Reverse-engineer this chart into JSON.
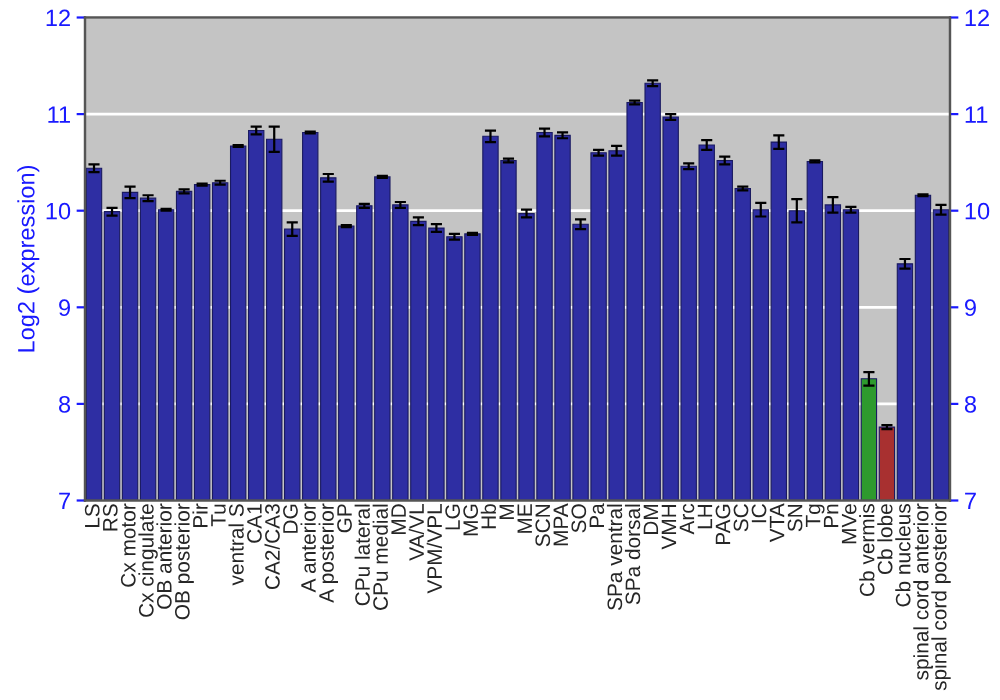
{
  "chart_data": {
    "type": "bar",
    "ylabel": "Log2 (expression)",
    "categories": [
      "LS",
      "RS",
      "Cx motor",
      "Cx cingulate",
      "OB anterior",
      "OB posterior",
      "Pir",
      "Tu",
      "ventral S",
      "CA1",
      "CA2/CA3",
      "DG",
      "A anterior",
      "A posterior",
      "GP",
      "CPu lateral",
      "CPu medial",
      "MD",
      "VA/VL",
      "VPM/VPL",
      "LG",
      "MG",
      "Hb",
      "M",
      "ME",
      "SCN",
      "MPA",
      "SO",
      "Pa",
      "SPa ventral",
      "SPa dorsal",
      "DM",
      "VMH",
      "Arc",
      "LH",
      "PAG",
      "SC",
      "IC",
      "VTA",
      "SN",
      "Tg",
      "Pn",
      "MVe",
      "Cb vermis",
      "Cb lobe",
      "Cb nucleus",
      "spinal cord anterior",
      "spinal cord posterior"
    ],
    "values": [
      10.44,
      9.99,
      10.19,
      10.13,
      10.01,
      10.2,
      10.27,
      10.29,
      10.67,
      10.83,
      10.74,
      9.81,
      10.81,
      10.34,
      9.84,
      10.05,
      10.35,
      10.06,
      9.89,
      9.82,
      9.73,
      9.76,
      10.77,
      10.52,
      9.97,
      10.81,
      10.78,
      9.86,
      10.6,
      10.62,
      11.12,
      11.32,
      10.97,
      10.46,
      10.68,
      10.52,
      10.23,
      10.01,
      10.71,
      10.0,
      10.51,
      10.06,
      10.01,
      8.26,
      7.76,
      9.45,
      10.16,
      10.01
    ],
    "errors": [
      0.04,
      0.04,
      0.06,
      0.03,
      0.01,
      0.02,
      0.01,
      0.02,
      0.01,
      0.04,
      0.13,
      0.07,
      0.01,
      0.04,
      0.01,
      0.02,
      0.01,
      0.03,
      0.04,
      0.04,
      0.03,
      0.01,
      0.06,
      0.02,
      0.04,
      0.04,
      0.03,
      0.05,
      0.03,
      0.05,
      0.02,
      0.03,
      0.03,
      0.03,
      0.05,
      0.04,
      0.02,
      0.07,
      0.07,
      0.12,
      0.01,
      0.08,
      0.03,
      0.07,
      0.02,
      0.05,
      0.01,
      0.05
    ],
    "colors": [
      "#2e2ea3",
      "#2e2ea3",
      "#2e2ea3",
      "#2e2ea3",
      "#2e2ea3",
      "#2e2ea3",
      "#2e2ea3",
      "#2e2ea3",
      "#2e2ea3",
      "#2e2ea3",
      "#2e2ea3",
      "#2e2ea3",
      "#2e2ea3",
      "#2e2ea3",
      "#2e2ea3",
      "#2e2ea3",
      "#2e2ea3",
      "#2e2ea3",
      "#2e2ea3",
      "#2e2ea3",
      "#2e2ea3",
      "#2e2ea3",
      "#2e2ea3",
      "#2e2ea3",
      "#2e2ea3",
      "#2e2ea3",
      "#2e2ea3",
      "#2e2ea3",
      "#2e2ea3",
      "#2e2ea3",
      "#2e2ea3",
      "#2e2ea3",
      "#2e2ea3",
      "#2e2ea3",
      "#2e2ea3",
      "#2e2ea3",
      "#2e2ea3",
      "#2e2ea3",
      "#2e2ea3",
      "#2e2ea3",
      "#2e2ea3",
      "#2e2ea3",
      "#2e2ea3",
      "#2e9a2e",
      "#a83030",
      "#2e2ea3",
      "#2e2ea3",
      "#2e2ea3"
    ],
    "ylim": [
      7,
      12
    ],
    "yticks": [
      7,
      8,
      9,
      10,
      11,
      12
    ],
    "y2lim": [
      7,
      12
    ],
    "y2ticks": [
      7,
      8,
      9,
      10,
      11,
      12
    ],
    "grid": "y",
    "legend": false
  }
}
